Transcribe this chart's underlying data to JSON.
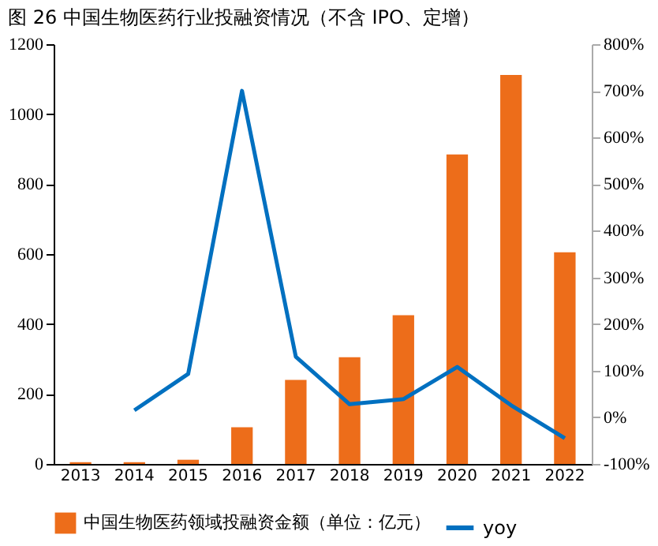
{
  "chart_data": {
    "type": "bar",
    "title": "图 26 中国生物医药行业投融资情况（不含 IPO、定增）",
    "categories": [
      "2013",
      "2014",
      "2015",
      "2016",
      "2017",
      "2018",
      "2019",
      "2020",
      "2021",
      "2022"
    ],
    "series": [
      {
        "name": "中国生物医药领域投融资金额（单位：亿元）",
        "color": "#ed6d1a",
        "values": [
          5,
          5,
          12,
          105,
          240,
          305,
          425,
          885,
          1112,
          605
        ]
      },
      {
        "name": "yoy",
        "type": "line",
        "axis": "y2",
        "color": "#0070c0",
        "values": [
          null,
          15,
          93,
          700,
          130,
          28,
          39,
          108,
          26,
          -45
        ]
      }
    ],
    "ylim": [
      0,
      1200
    ],
    "yticks": [
      0,
      200,
      400,
      600,
      800,
      1000,
      1200
    ],
    "y2lim": [
      -100,
      800
    ],
    "y2ticks": [
      {
        "value": -100,
        "label": "-100%"
      },
      {
        "value": 0,
        "label": "0%"
      },
      {
        "value": 100,
        "label": "100%"
      },
      {
        "value": 200,
        "label": "200%"
      },
      {
        "value": 300,
        "label": "300%"
      },
      {
        "value": 400,
        "label": "400%"
      },
      {
        "value": 500,
        "label": "500%"
      },
      {
        "value": 600,
        "label": "600%"
      },
      {
        "value": 700,
        "label": "700%"
      },
      {
        "value": 800,
        "label": "800%"
      }
    ],
    "grid": false,
    "legend": "bottom",
    "marker": "none",
    "line_style": "solid"
  }
}
